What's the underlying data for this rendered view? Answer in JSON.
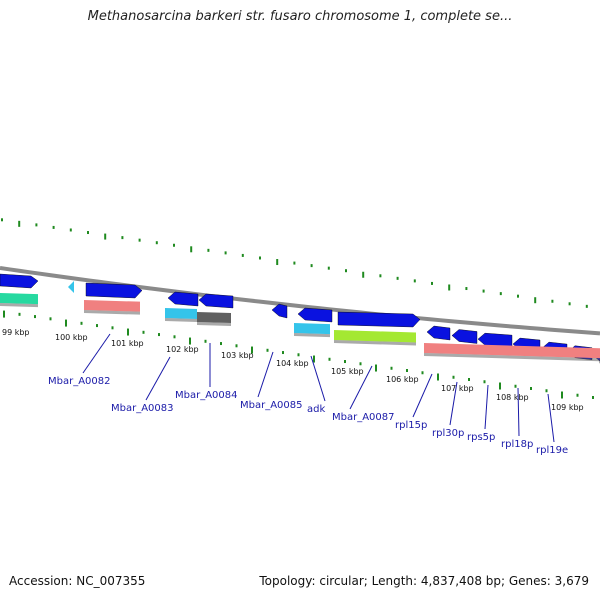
{
  "title": "Methanosarcina barkeri str. fusaro chromosome 1, complete se...",
  "footer": {
    "accession": "Accession: NC_007355",
    "topology": "Topology: circular; Length: 4,837,408 bp; Genes: 3,679"
  },
  "colors": {
    "backbone": "#8a8a8a",
    "tick": "#1f8a1f",
    "forward_gene": "#0a12e0",
    "label": "#1a1aa8",
    "teal_track": "#26d9a0",
    "salmon_track": "#f08080",
    "cyan_track": "#34c4ea",
    "gray_track": "#606060",
    "lime_track": "#a4e832"
  },
  "kbp_labels": [
    "99 kbp",
    "100 kbp",
    "101 kbp",
    "102 kbp",
    "103 kbp",
    "104 kbp",
    "105 kbp",
    "106 kbp",
    "107 kbp",
    "108 kbp",
    "109 kbp"
  ],
  "gene_labels": [
    "Mbar_A0082",
    "Mbar_A0083",
    "Mbar_A0084",
    "Mbar_A0085",
    "adk",
    "Mbar_A0087",
    "rpl15p",
    "rpl30p",
    "rps5p",
    "rpl18p",
    "rpl19e"
  ]
}
